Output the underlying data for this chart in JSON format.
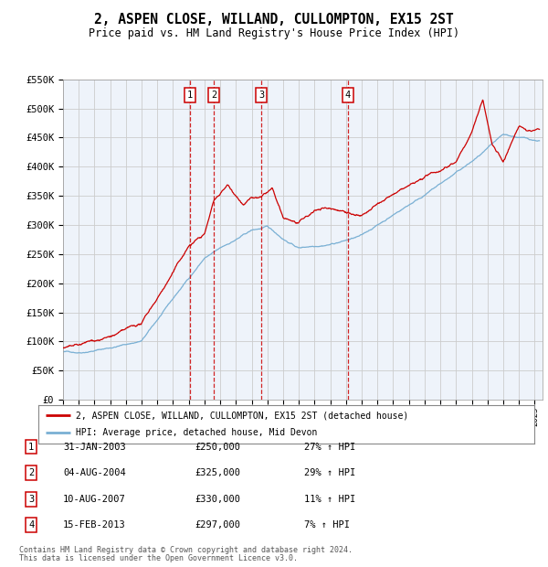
{
  "title": "2, ASPEN CLOSE, WILLAND, CULLOMPTON, EX15 2ST",
  "subtitle": "Price paid vs. HM Land Registry's House Price Index (HPI)",
  "ylim": [
    0,
    550000
  ],
  "yticks": [
    0,
    50000,
    100000,
    150000,
    200000,
    250000,
    300000,
    350000,
    400000,
    450000,
    500000,
    550000
  ],
  "ytick_labels": [
    "£0",
    "£50K",
    "£100K",
    "£150K",
    "£200K",
    "£250K",
    "£300K",
    "£350K",
    "£400K",
    "£450K",
    "£500K",
    "£550K"
  ],
  "red_line_color": "#cc0000",
  "blue_line_color": "#7ab0d4",
  "dashed_line_color": "#cc0000",
  "grid_color": "#cccccc",
  "background_color": "#ffffff",
  "plot_bg_color": "#eef3fa",
  "legend_label_red": "2, ASPEN CLOSE, WILLAND, CULLOMPTON, EX15 2ST (detached house)",
  "legend_label_blue": "HPI: Average price, detached house, Mid Devon",
  "transactions": [
    {
      "id": 1,
      "date": "31-JAN-2003",
      "year": 2003.08,
      "price": 250000,
      "hpi_pct": "27% ↑ HPI"
    },
    {
      "id": 2,
      "date": "04-AUG-2004",
      "year": 2004.59,
      "price": 325000,
      "hpi_pct": "29% ↑ HPI"
    },
    {
      "id": 3,
      "date": "10-AUG-2007",
      "year": 2007.61,
      "price": 330000,
      "hpi_pct": "11% ↑ HPI"
    },
    {
      "id": 4,
      "date": "15-FEB-2013",
      "year": 2013.12,
      "price": 297000,
      "hpi_pct": "7% ↑ HPI"
    }
  ],
  "footer_line1": "Contains HM Land Registry data © Crown copyright and database right 2024.",
  "footer_line2": "This data is licensed under the Open Government Licence v3.0.",
  "xmin": 1995.0,
  "xmax": 2025.5
}
